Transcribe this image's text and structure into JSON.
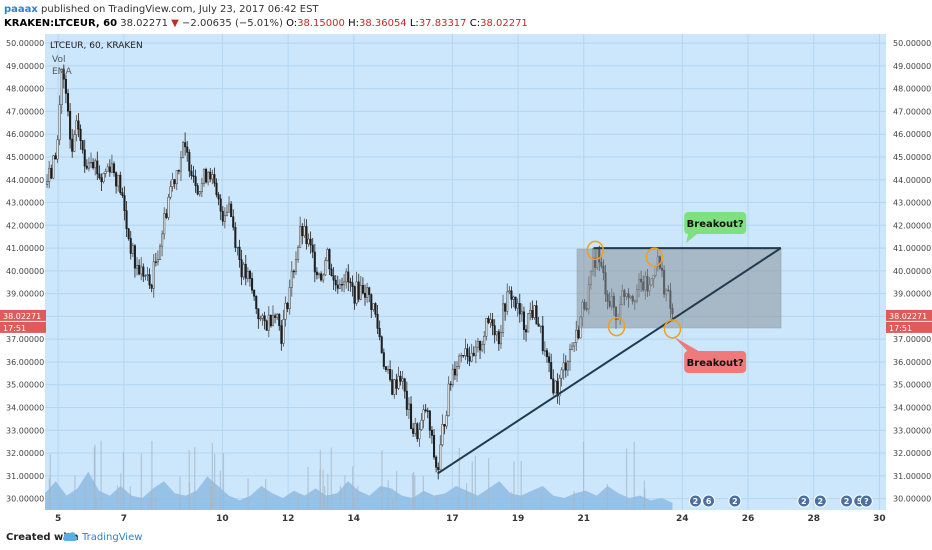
{
  "header": {
    "author": "paaax",
    "published_text": "published on TradingView.com, July 23, 2017 06:42 EST",
    "symbol": "KRAKEN:LTCEUR, 60",
    "last": "38.02271",
    "change_arrow": "▼",
    "change": "−2.00635 (−5.01%)",
    "ohlc": [
      {
        "label": "O:",
        "value": "38.15000"
      },
      {
        "label": "H:",
        "value": "38.36054"
      },
      {
        "label": "L:",
        "value": "37.83317"
      },
      {
        "label": "C:",
        "value": "38.02271"
      }
    ]
  },
  "legend": {
    "symbol_line": "LTCEUR, 60, KRAKEN",
    "vol": "Vol",
    "ema": "EMA"
  },
  "footer": {
    "created_with": "Created with",
    "brand": "TradingView"
  },
  "colors": {
    "background": "#cce6fb",
    "grid": "#b3d6f2",
    "candle_up": "#4e4e4e",
    "candle_down": "#1e1e1e",
    "trend_line": "#1f3b4d",
    "range_box": "#8a949c",
    "volume": "#8ab9e3",
    "marker": "#f0a020",
    "callout_up": "#7ee07e",
    "callout_down": "#f07a7a",
    "price_label": "#e05a5a"
  },
  "chart_data": {
    "type": "candlestick",
    "ylim": [
      29.5,
      50.4
    ],
    "xlim": [
      4.6,
      30.2
    ],
    "y_ticks": [
      "30.00000",
      "31.00000",
      "32.00000",
      "33.00000",
      "34.00000",
      "35.00000",
      "36.00000",
      "37.00000",
      "38.00000",
      "39.00000",
      "40.00000",
      "41.00000",
      "42.00000",
      "43.00000",
      "44.00000",
      "45.00000",
      "46.00000",
      "47.00000",
      "48.00000",
      "49.00000",
      "50.00000"
    ],
    "x_ticks": [
      {
        "day": 5,
        "label": "5"
      },
      {
        "day": 7,
        "label": "7"
      },
      {
        "day": 10,
        "label": "10"
      },
      {
        "day": 12,
        "label": "12"
      },
      {
        "day": 14,
        "label": "14"
      },
      {
        "day": 17,
        "label": "17"
      },
      {
        "day": 19,
        "label": "19"
      },
      {
        "day": 21,
        "label": "21"
      },
      {
        "day": 24,
        "label": "24"
      },
      {
        "day": 26,
        "label": "26"
      },
      {
        "day": 28,
        "label": "28"
      },
      {
        "day": 30,
        "label": "30"
      }
    ],
    "price_path": [
      [
        4.6,
        43.8
      ],
      [
        4.8,
        44.3
      ],
      [
        5.0,
        45.8
      ],
      [
        5.1,
        49.0
      ],
      [
        5.25,
        47.5
      ],
      [
        5.4,
        45.0
      ],
      [
        5.6,
        46.5
      ],
      [
        5.8,
        44.6
      ],
      [
        6.0,
        45.2
      ],
      [
        6.3,
        44.0
      ],
      [
        6.6,
        44.8
      ],
      [
        6.9,
        43.6
      ],
      [
        7.1,
        41.8
      ],
      [
        7.35,
        40.2
      ],
      [
        7.6,
        39.9
      ],
      [
        7.8,
        39.3
      ],
      [
        8.0,
        40.6
      ],
      [
        8.2,
        42.0
      ],
      [
        8.4,
        43.6
      ],
      [
        8.6,
        44.4
      ],
      [
        8.8,
        45.3
      ],
      [
        9.0,
        44.8
      ],
      [
        9.3,
        43.6
      ],
      [
        9.6,
        44.6
      ],
      [
        9.8,
        43.2
      ],
      [
        10.0,
        42.5
      ],
      [
        10.2,
        43.0
      ],
      [
        10.4,
        41.4
      ],
      [
        10.6,
        40.0
      ],
      [
        10.8,
        39.6
      ],
      [
        11.0,
        38.6
      ],
      [
        11.2,
        37.6
      ],
      [
        11.4,
        37.8
      ],
      [
        11.6,
        38.4
      ],
      [
        11.8,
        37.2
      ],
      [
        12.0,
        38.9
      ],
      [
        12.2,
        40.4
      ],
      [
        12.4,
        41.8
      ],
      [
        12.6,
        41.2
      ],
      [
        12.8,
        40.4
      ],
      [
        13.0,
        39.8
      ],
      [
        13.2,
        40.8
      ],
      [
        13.4,
        39.4
      ],
      [
        13.7,
        39.8
      ],
      [
        14.0,
        39.0
      ],
      [
        14.3,
        39.3
      ],
      [
        14.6,
        38.4
      ],
      [
        14.8,
        37.0
      ],
      [
        15.0,
        35.4
      ],
      [
        15.2,
        34.8
      ],
      [
        15.4,
        35.6
      ],
      [
        15.6,
        34.2
      ],
      [
        15.8,
        33.0
      ],
      [
        16.0,
        32.9
      ],
      [
        16.2,
        34.0
      ],
      [
        16.4,
        32.2
      ],
      [
        16.55,
        31.1
      ],
      [
        16.7,
        33.0
      ],
      [
        16.85,
        34.3
      ],
      [
        17.0,
        35.6
      ],
      [
        17.2,
        36.2
      ],
      [
        17.4,
        36.8
      ],
      [
        17.6,
        35.9
      ],
      [
        17.8,
        36.6
      ],
      [
        18.0,
        37.4
      ],
      [
        18.2,
        38.0
      ],
      [
        18.4,
        37.0
      ],
      [
        18.6,
        38.6
      ],
      [
        18.8,
        39.0
      ],
      [
        19.0,
        38.2
      ],
      [
        19.2,
        37.6
      ],
      [
        19.4,
        38.3
      ],
      [
        19.6,
        37.9
      ],
      [
        19.8,
        36.4
      ],
      [
        20.0,
        35.2
      ],
      [
        20.2,
        34.8
      ],
      [
        20.4,
        35.8
      ],
      [
        20.6,
        36.6
      ],
      [
        20.8,
        37.2
      ],
      [
        21.0,
        38.6
      ],
      [
        21.1,
        38.8
      ],
      [
        21.2,
        39.4
      ],
      [
        21.3,
        40.4
      ],
      [
        21.4,
        40.8
      ],
      [
        21.5,
        40.2
      ],
      [
        21.65,
        39.4
      ],
      [
        21.8,
        38.6
      ],
      [
        21.95,
        38.3
      ],
      [
        22.0,
        37.6
      ],
      [
        22.1,
        38.8
      ],
      [
        22.3,
        39.2
      ],
      [
        22.5,
        39.0
      ],
      [
        22.8,
        39.4
      ],
      [
        23.0,
        39.2
      ],
      [
        23.2,
        40.6
      ],
      [
        23.3,
        40.2
      ],
      [
        23.45,
        39.4
      ],
      [
        23.6,
        38.6
      ],
      [
        23.7,
        38.0
      ]
    ],
    "volume_levels": [
      0.35,
      0.6,
      0.3,
      0.45,
      0.8,
      0.4,
      0.3,
      0.5,
      0.3,
      0.25,
      0.45,
      0.6,
      0.35,
      0.3,
      0.4,
      0.7,
      0.5,
      0.3,
      0.2,
      0.3,
      0.5,
      0.35,
      0.25,
      0.4,
      0.3,
      0.45,
      0.3,
      0.35,
      0.6,
      0.4,
      0.3,
      0.5,
      0.45,
      0.3,
      0.25,
      0.4,
      0.3,
      0.35,
      0.5,
      0.4,
      0.3,
      0.45,
      0.6,
      0.35,
      0.3,
      0.4,
      0.5,
      0.3,
      0.25,
      0.35,
      0.4,
      0.3,
      0.5,
      0.35,
      0.25,
      0.3,
      0.2,
      0.25,
      0.15
    ],
    "trend_line": [
      [
        16.55,
        31.1
      ],
      [
        27.0,
        41.0
      ]
    ],
    "resistance_line": [
      [
        21.3,
        41.0
      ],
      [
        27.0,
        41.0
      ]
    ],
    "range_box": {
      "x": [
        20.8,
        27.0
      ],
      "y": [
        37.5,
        40.95
      ]
    },
    "circle_markers": [
      [
        21.35,
        40.9
      ],
      [
        22.0,
        37.55
      ],
      [
        23.15,
        40.6
      ],
      [
        23.7,
        37.45
      ]
    ],
    "current_price": {
      "value": 38.02271,
      "label": "38.02271",
      "time_left": "17:51"
    },
    "annotations": [
      {
        "text": "Breakout?",
        "type": "up",
        "at": [
          25.0,
          42.1
        ]
      },
      {
        "text": "Breakout?",
        "type": "down",
        "at": [
          25.0,
          36.0
        ]
      }
    ],
    "event_markers": [
      {
        "day": 24.4,
        "label": "2"
      },
      {
        "day": 24.8,
        "label": "6"
      },
      {
        "day": 25.6,
        "label": "2"
      },
      {
        "day": 27.7,
        "label": "2"
      },
      {
        "day": 28.2,
        "label": "2"
      },
      {
        "day": 29.0,
        "label": "2"
      },
      {
        "day": 29.4,
        "label": "5"
      },
      {
        "day": 29.6,
        "label": "?"
      }
    ]
  }
}
